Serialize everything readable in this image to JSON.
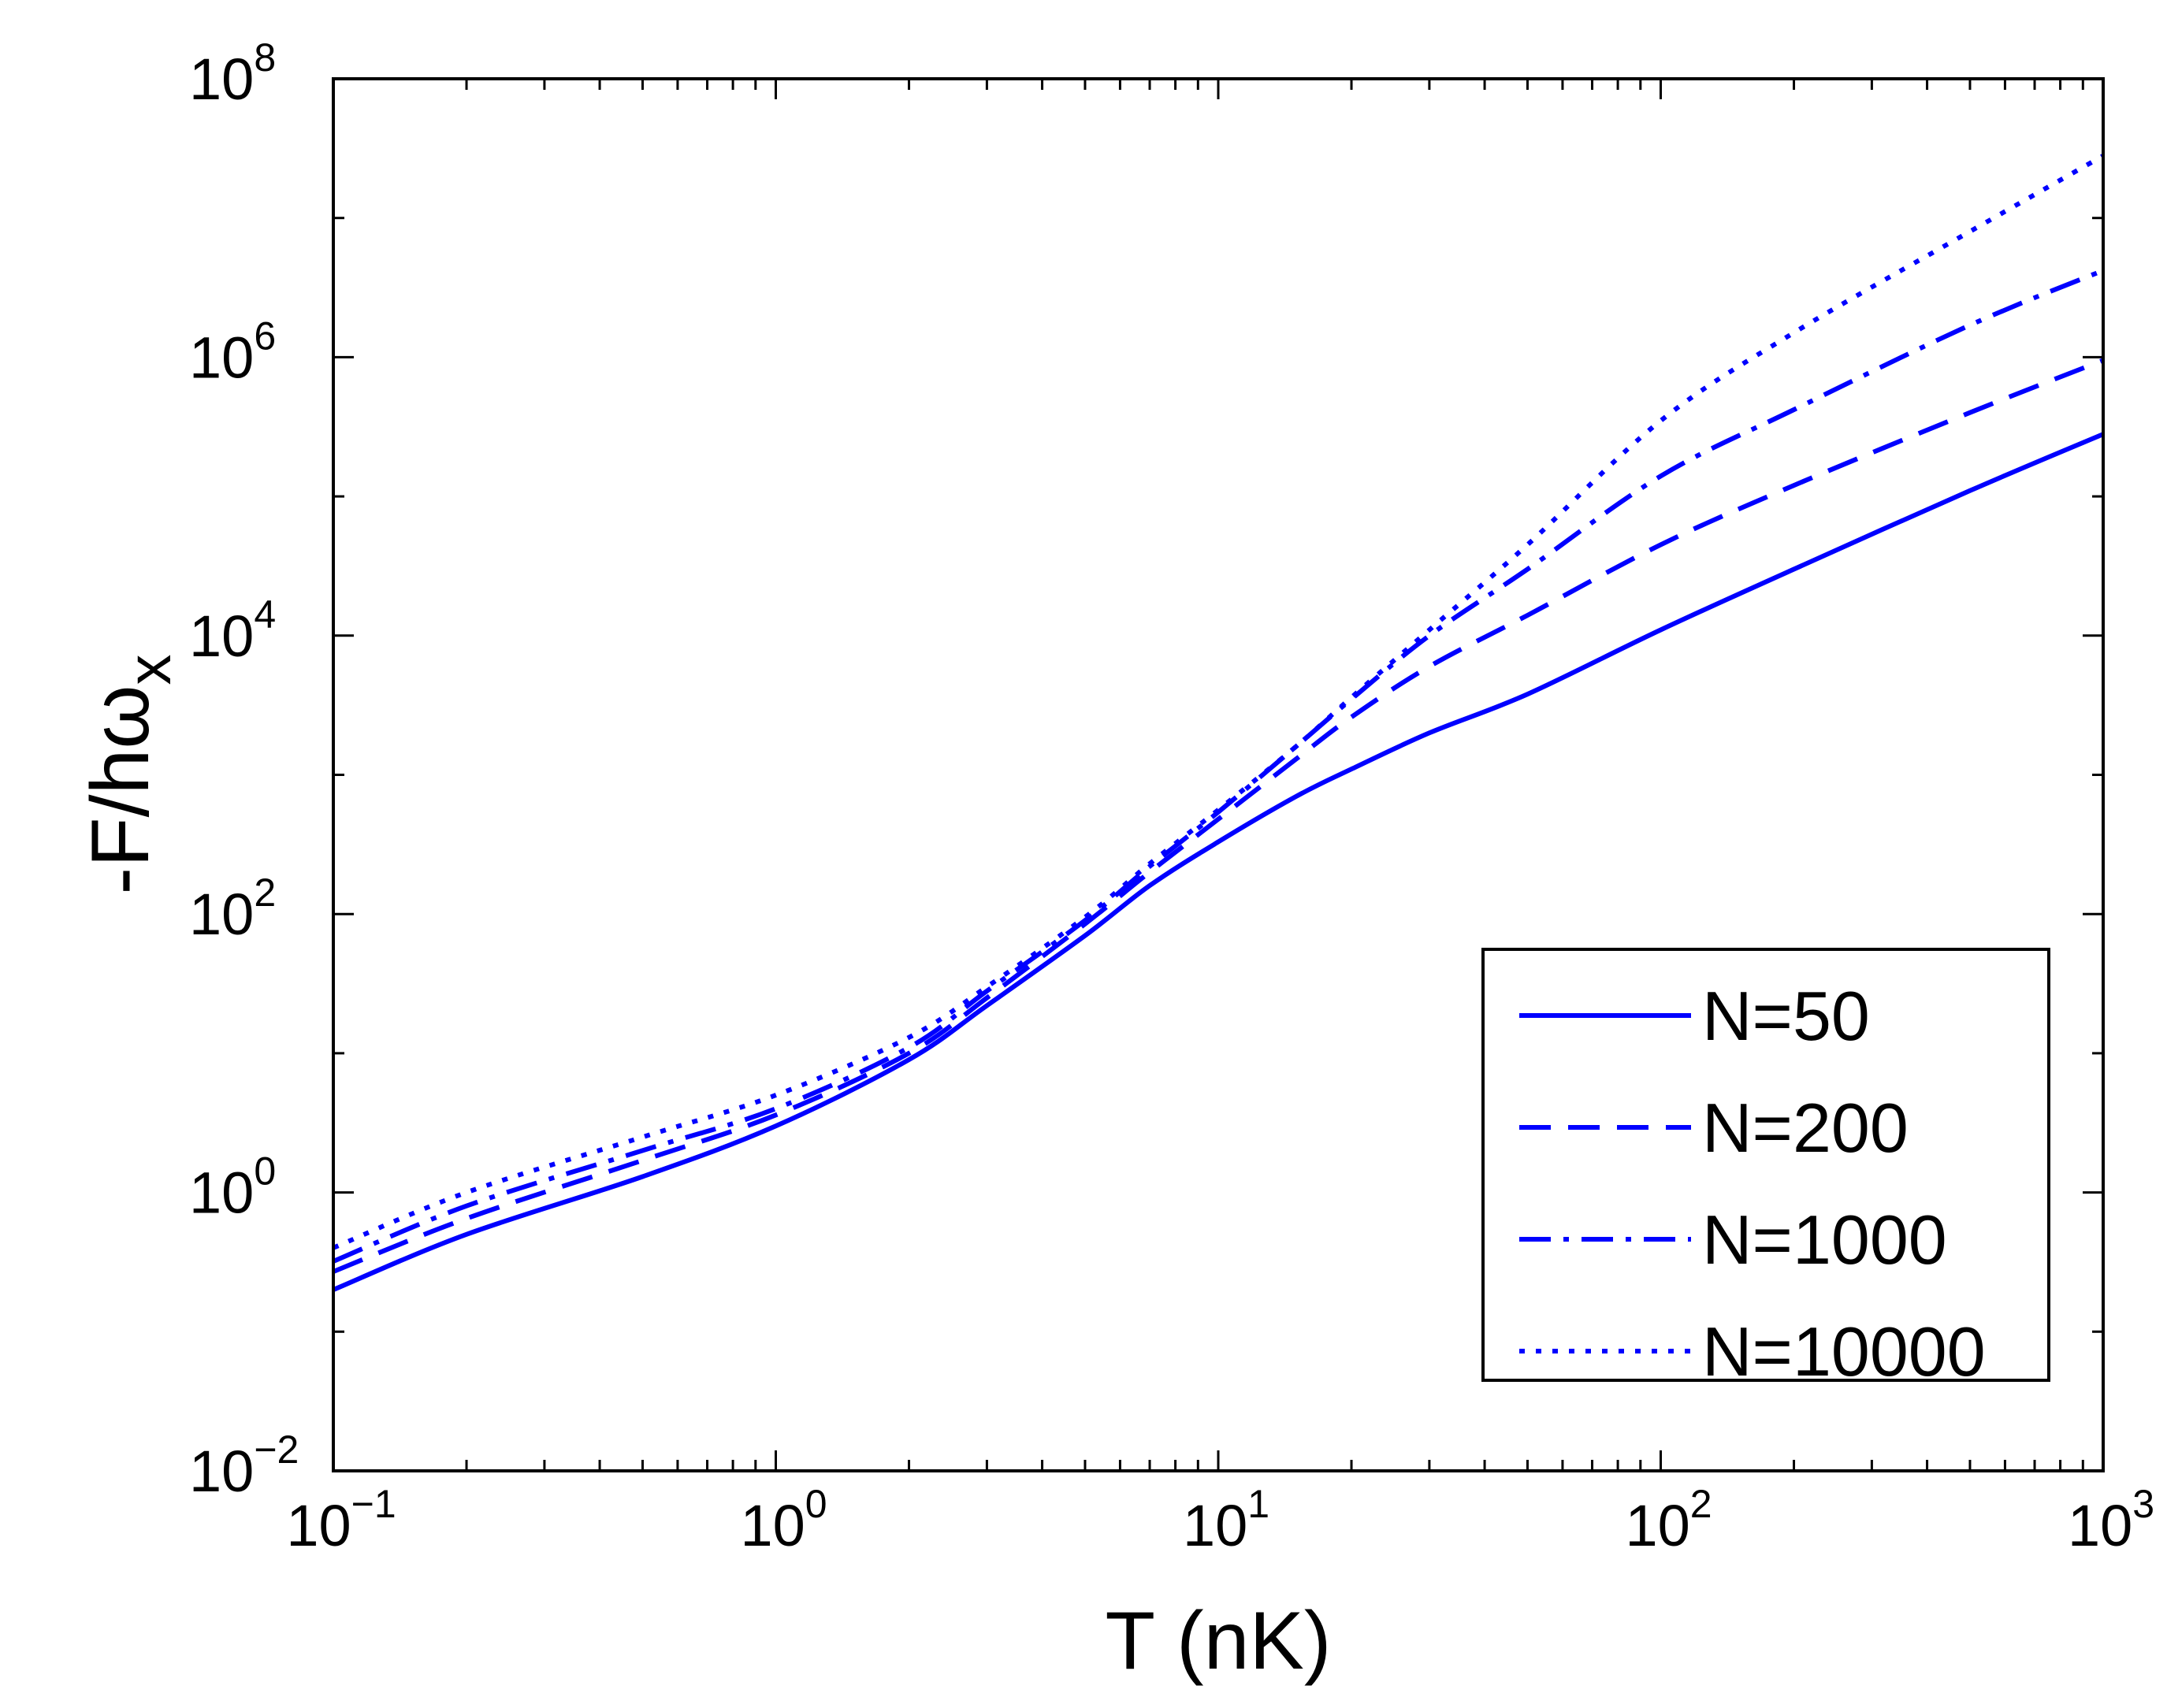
{
  "chart_data": {
    "type": "line",
    "title": "",
    "xlabel": "T (nK)",
    "ylabel_main": "-F/hω",
    "ylabel_sub": "x",
    "xscale": "log",
    "yscale": "log",
    "xlim": [
      0.1,
      1000
    ],
    "ylim": [
      0.01,
      100000000
    ],
    "grid": false,
    "legend_position": "lower-right",
    "x_ticks": [
      {
        "value": 0.1,
        "base": "10",
        "exp": "−1"
      },
      {
        "value": 1,
        "base": "10",
        "exp": "0"
      },
      {
        "value": 10,
        "base": "10",
        "exp": "1"
      },
      {
        "value": 100,
        "base": "10",
        "exp": "2"
      },
      {
        "value": 1000,
        "base": "10",
        "exp": "3"
      }
    ],
    "y_ticks": [
      {
        "value": 0.01,
        "base": "10",
        "exp": "−2"
      },
      {
        "value": 1,
        "base": "10",
        "exp": "0"
      },
      {
        "value": 100,
        "base": "10",
        "exp": "2"
      },
      {
        "value": 10000,
        "base": "10",
        "exp": "4"
      },
      {
        "value": 1000000,
        "base": "10",
        "exp": "6"
      },
      {
        "value": 100000000,
        "base": "10",
        "exp": "8"
      }
    ],
    "color": "#0000ff",
    "series": [
      {
        "name": "N=50",
        "style": "solid",
        "x": [
          0.1,
          0.2,
          0.5,
          1,
          2,
          3,
          5,
          7,
          10,
          15,
          20,
          30,
          50,
          100,
          200,
          500,
          1000
        ],
        "y": [
          0.2,
          0.5,
          1.3,
          3.0,
          9,
          22,
          70,
          160,
          330,
          700,
          1100,
          2000,
          3800,
          11000,
          30000,
          110000,
          280000
        ]
      },
      {
        "name": "N=200",
        "style": "dashed",
        "x": [
          0.1,
          0.2,
          0.5,
          1,
          2,
          3,
          5,
          7,
          10,
          15,
          20,
          30,
          50,
          100,
          200,
          500,
          1000
        ],
        "y": [
          0.27,
          0.65,
          1.7,
          3.6,
          10,
          25,
          85,
          200,
          480,
          1300,
          2600,
          6000,
          14000,
          45000,
          120000,
          400000,
          950000
        ]
      },
      {
        "name": "N=1000",
        "style": "dashdot",
        "x": [
          0.1,
          0.2,
          0.5,
          1,
          2,
          3,
          5,
          7,
          10,
          15,
          20,
          30,
          50,
          100,
          200,
          500,
          1000
        ],
        "y": [
          0.32,
          0.8,
          2.0,
          4.0,
          11,
          28,
          90,
          220,
          540,
          1600,
          3500,
          10000,
          30000,
          140000,
          420000,
          1700000,
          4200000
        ]
      },
      {
        "name": "N=10000",
        "style": "dotted",
        "x": [
          0.1,
          0.2,
          0.5,
          1,
          2,
          3,
          5,
          7,
          10,
          15,
          20,
          30,
          50,
          100,
          200,
          500,
          1000
        ],
        "y": [
          0.4,
          1.0,
          2.5,
          5.0,
          13,
          30,
          95,
          230,
          560,
          1600,
          3600,
          11000,
          45000,
          350000,
          1500000,
          8000000,
          28000000
        ]
      }
    ]
  }
}
